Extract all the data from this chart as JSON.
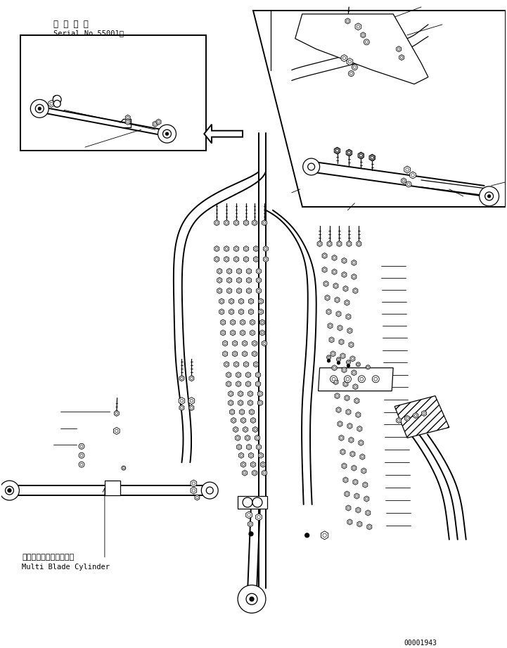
{
  "background_color": "#ffffff",
  "line_color": "#000000",
  "title_jp": "適 用 号 機",
  "title_serial": "Serial No.55001～",
  "label_jp": "マルチブレードシリンダ",
  "label_en": "Multi Blade Cylinder",
  "part_number": "00001943",
  "figsize": [
    7.21,
    9.21
  ],
  "dpi": 100
}
